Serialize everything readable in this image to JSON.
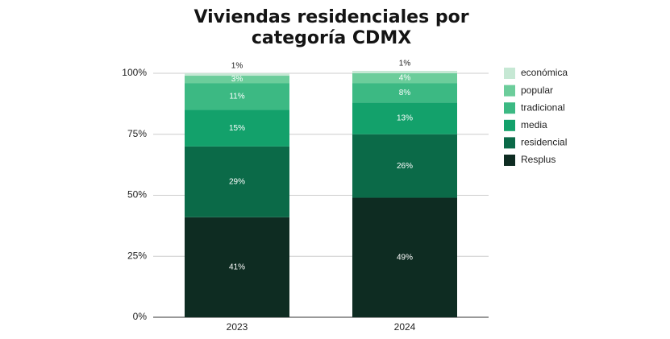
{
  "chart_data": {
    "type": "stacked_bar",
    "title": [
      "Viviendas residenciales por",
      "categoría CDMX"
    ],
    "categories": [
      "2023",
      "2024"
    ],
    "series": [
      {
        "name": "Resplus",
        "color": "#0e2c22",
        "values": [
          41,
          49
        ],
        "value_labels": [
          "41%",
          "49%"
        ]
      },
      {
        "name": "residencial",
        "color": "#0b6a48",
        "values": [
          29,
          26
        ],
        "value_labels": [
          "29%",
          "26%"
        ]
      },
      {
        "name": "media",
        "color": "#13a16b",
        "values": [
          15,
          13
        ],
        "value_labels": [
          "15%",
          "13%"
        ]
      },
      {
        "name": "tradicional",
        "color": "#3cb983",
        "values": [
          11,
          8
        ],
        "value_labels": [
          "11%",
          "8%"
        ]
      },
      {
        "name": "popular",
        "color": "#6ccd9b",
        "values": [
          3,
          4
        ],
        "value_labels": [
          "3%",
          "4%"
        ]
      },
      {
        "name": "económica",
        "color": "#c6e8d4",
        "values": [
          1,
          1
        ],
        "value_labels": [
          "1%",
          "1%"
        ]
      }
    ],
    "ylim": [
      0,
      100
    ],
    "yticks": [
      {
        "value": 0,
        "label": "0%"
      },
      {
        "value": 25,
        "label": "25%"
      },
      {
        "value": 50,
        "label": "50%"
      },
      {
        "value": 75,
        "label": "75%"
      },
      {
        "value": 100,
        "label": "100%"
      }
    ],
    "grid": true,
    "legend": "right"
  }
}
